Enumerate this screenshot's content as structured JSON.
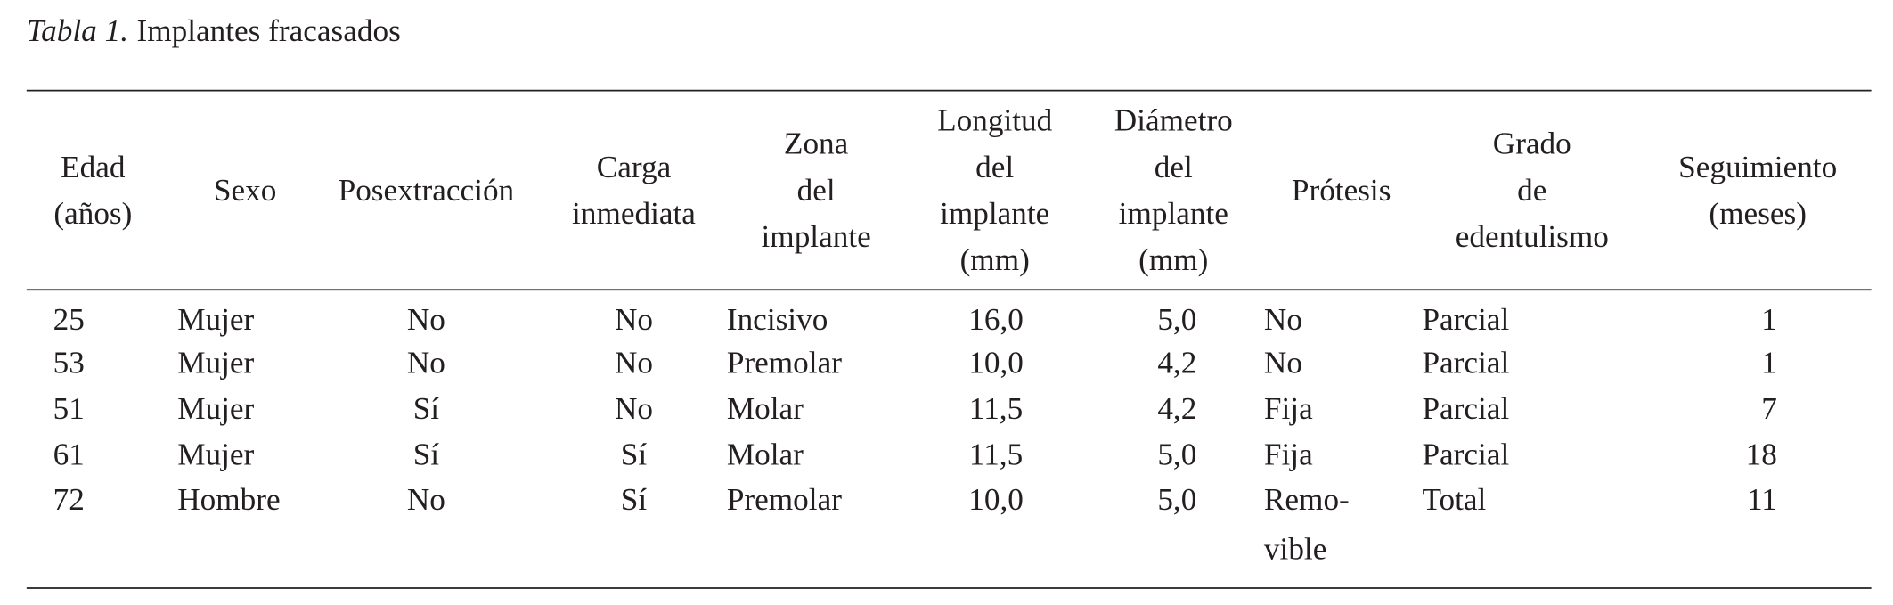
{
  "caption": {
    "label": "Tabla 1.",
    "title": "Implantes fracasados"
  },
  "table": {
    "header": [
      [
        "Edad",
        "(años)"
      ],
      [
        "Sexo"
      ],
      [
        "Posextracción"
      ],
      [
        "Carga",
        "inmediata"
      ],
      [
        "Zona",
        "del",
        "implante"
      ],
      [
        "Longitud",
        "del",
        "implante",
        "(mm)"
      ],
      [
        "Diámetro",
        "del",
        "implante",
        "(mm)"
      ],
      [
        "Prótesis"
      ],
      [
        "Grado",
        "de",
        "edentulismo"
      ],
      [
        "Seguimiento",
        "(meses)"
      ]
    ],
    "rows": [
      [
        "25",
        "Mujer",
        "No",
        "No",
        "Incisivo",
        "16,0",
        "5,0",
        "No",
        "Parcial",
        "1"
      ],
      [
        "53",
        "Mujer",
        "No",
        "No",
        "Premolar",
        "10,0",
        "4,2",
        "No",
        "Parcial",
        "1"
      ],
      [
        "51",
        "Mujer",
        "Sí",
        "No",
        "Molar",
        "11,5",
        "4,2",
        "Fija",
        "Parcial",
        "7"
      ],
      [
        "61",
        "Mujer",
        "Sí",
        "Sí",
        "Molar",
        "11,5",
        "5,0",
        "Fija",
        "Parcial",
        "18"
      ],
      [
        "72",
        "Hombre",
        "No",
        "Sí",
        "Premolar",
        "10,0",
        "5,0",
        [
          "Remo-",
          "vible"
        ],
        "Total",
        "11"
      ]
    ]
  }
}
